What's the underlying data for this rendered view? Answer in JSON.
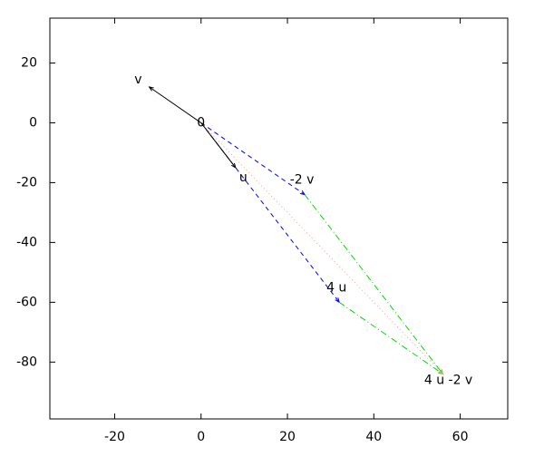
{
  "chart_data": {
    "type": "vector",
    "xlim": [
      -35,
      71
    ],
    "ylim": [
      -99,
      35
    ],
    "xticks": [
      -20,
      0,
      20,
      40,
      60
    ],
    "yticks": [
      -80,
      -60,
      -40,
      -20,
      0,
      20
    ],
    "series": [
      {
        "color": "#0000ff",
        "dash": "dashed",
        "x": [
          0,
          32
        ],
        "y": [
          0,
          -60
        ]
      },
      {
        "color": "#0000ff",
        "dash": "dashed",
        "x": [
          0,
          24
        ],
        "y": [
          0,
          -24
        ]
      },
      {
        "color": "#00dd00",
        "dash": "dashdot",
        "x": [
          24,
          56
        ],
        "y": [
          -24,
          -84
        ]
      },
      {
        "color": "#00dd00",
        "dash": "dashdot",
        "x": [
          32,
          56
        ],
        "y": [
          -60,
          -84
        ]
      },
      {
        "color": "#ff9999",
        "dash": "dotted",
        "x": [
          0,
          56
        ],
        "y": [
          0,
          -84
        ]
      },
      {
        "color": "#000000",
        "dash": "solid",
        "x": [
          0,
          -12
        ],
        "y": [
          0,
          12
        ]
      },
      {
        "color": "#000000",
        "dash": "solid",
        "x": [
          0,
          8
        ],
        "y": [
          0,
          -15
        ]
      }
    ],
    "labels": [
      {
        "text": "v",
        "x": -12,
        "y": 12
      },
      {
        "text": "0",
        "x": 0,
        "y": 0
      },
      {
        "text": "u",
        "x": 8,
        "y": -15
      },
      {
        "text": "-2 v",
        "x": 24,
        "y": -24
      },
      {
        "text": "4 u",
        "x": 32,
        "y": -60
      },
      {
        "text": "4 u -2 v",
        "x": 56,
        "y": -84
      }
    ]
  }
}
